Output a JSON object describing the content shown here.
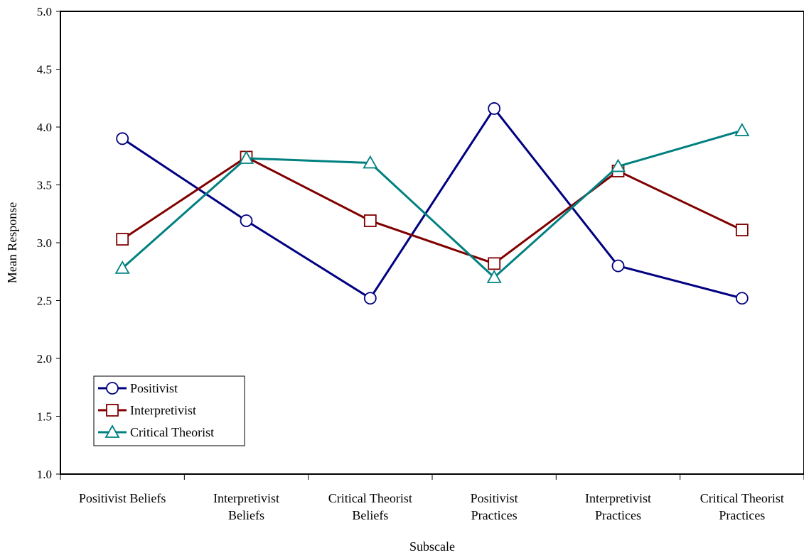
{
  "chart_data": {
    "type": "line",
    "categories": [
      [
        "Positivist Beliefs"
      ],
      [
        "Interpretivist",
        "Beliefs"
      ],
      [
        "Critical Theorist",
        "Beliefs"
      ],
      [
        "Positivist",
        "Practices"
      ],
      [
        "Interpretivist",
        "Practices"
      ],
      [
        "Critical Theorist",
        "Practices"
      ]
    ],
    "series": [
      {
        "name": "Positivist",
        "color": "#000080",
        "marker": "circle",
        "values": [
          3.9,
          3.19,
          2.52,
          4.16,
          2.8,
          2.52
        ]
      },
      {
        "name": "Interpretivist",
        "color": "#800000",
        "marker": "square",
        "values": [
          3.03,
          3.74,
          3.19,
          2.82,
          3.62,
          3.11
        ]
      },
      {
        "name": "Critical Theorist",
        "color": "#008080",
        "marker": "triangle",
        "values": [
          2.78,
          3.73,
          3.69,
          2.7,
          3.66,
          3.97
        ]
      }
    ],
    "xlabel": "Subscale",
    "ylabel": "Mean Response",
    "ylim": [
      1.0,
      5.0
    ],
    "yticks": [
      "1.0",
      "1.5",
      "2.0",
      "2.5",
      "3.0",
      "3.5",
      "4.0",
      "4.5",
      "5.0"
    ],
    "grid": false,
    "legend_position": "bottom-left"
  }
}
